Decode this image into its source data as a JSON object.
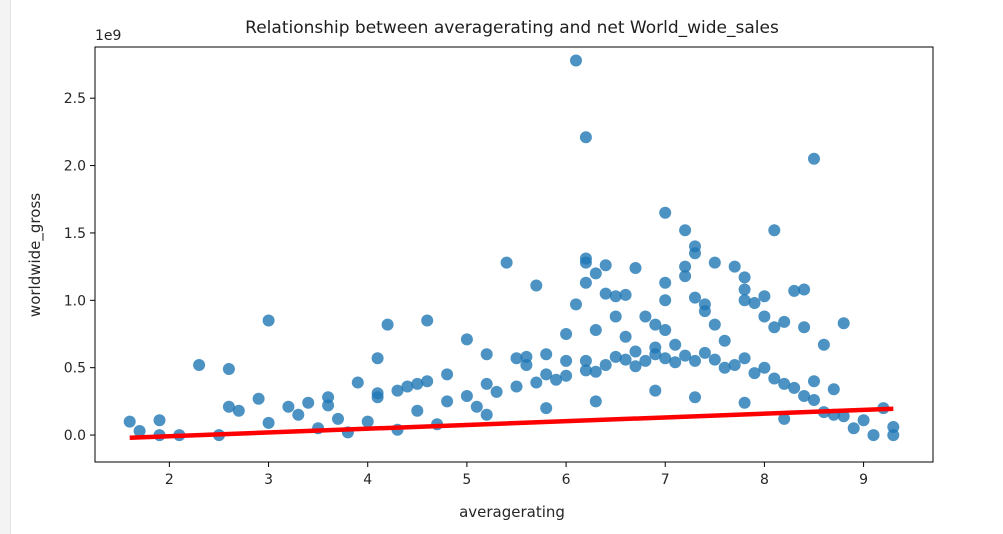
{
  "chart_data": {
    "type": "scatter",
    "title": "Relationship between averagerating and net World_wide_sales",
    "xlabel": "averagerating",
    "ylabel": "worldwide_gross",
    "y_offset_label": "1e9",
    "xlim": [
      1.25,
      9.7
    ],
    "ylim": [
      -0.2,
      2.88
    ],
    "x_ticks": [
      2,
      3,
      4,
      5,
      6,
      7,
      8,
      9
    ],
    "y_ticks": [
      0.0,
      0.5,
      1.0,
      1.5,
      2.0,
      2.5
    ],
    "y_tick_labels": [
      "0.0",
      "0.5",
      "1.0",
      "1.5",
      "2.0",
      "2.5"
    ],
    "grid": false,
    "marker_color": "#1f77b4",
    "marker_alpha": 0.8,
    "regression_color": "#ff0000",
    "regression_line": {
      "x": [
        1.6,
        9.3
      ],
      "y": [
        -0.02,
        0.195
      ]
    },
    "series": [
      {
        "points": [
          [
            1.6,
            0.1
          ],
          [
            1.7,
            0.03
          ],
          [
            1.9,
            0.11
          ],
          [
            1.9,
            0.0
          ],
          [
            2.1,
            0.0
          ],
          [
            2.3,
            0.52
          ],
          [
            2.6,
            0.49
          ],
          [
            2.6,
            0.21
          ],
          [
            2.7,
            0.18
          ],
          [
            2.9,
            0.27
          ],
          [
            3.0,
            0.85
          ],
          [
            3.0,
            0.09
          ],
          [
            3.2,
            0.21
          ],
          [
            3.3,
            0.15
          ],
          [
            3.4,
            0.24
          ],
          [
            3.6,
            0.28
          ],
          [
            3.6,
            0.22
          ],
          [
            3.7,
            0.12
          ],
          [
            3.9,
            0.39
          ],
          [
            4.1,
            0.57
          ],
          [
            4.1,
            0.31
          ],
          [
            4.1,
            0.28
          ],
          [
            4.2,
            0.82
          ],
          [
            4.3,
            0.33
          ],
          [
            4.4,
            0.36
          ],
          [
            4.5,
            0.38
          ],
          [
            4.6,
            0.85
          ],
          [
            4.6,
            0.4
          ],
          [
            4.8,
            0.45
          ],
          [
            4.8,
            0.25
          ],
          [
            5.0,
            0.71
          ],
          [
            5.0,
            0.29
          ],
          [
            5.2,
            0.6
          ],
          [
            5.2,
            0.38
          ],
          [
            5.4,
            1.28
          ],
          [
            5.5,
            0.57
          ],
          [
            5.6,
            0.58
          ],
          [
            5.6,
            0.52
          ],
          [
            5.7,
            1.11
          ],
          [
            5.8,
            0.6
          ],
          [
            5.8,
            0.45
          ],
          [
            6.0,
            0.75
          ],
          [
            6.0,
            0.55
          ],
          [
            6.1,
            2.78
          ],
          [
            6.1,
            0.97
          ],
          [
            6.2,
            2.21
          ],
          [
            6.2,
            1.31
          ],
          [
            6.2,
            1.28
          ],
          [
            6.2,
            1.13
          ],
          [
            6.2,
            0.55
          ],
          [
            6.3,
            1.2
          ],
          [
            6.3,
            0.78
          ],
          [
            6.4,
            1.26
          ],
          [
            6.4,
            1.05
          ],
          [
            6.5,
            1.03
          ],
          [
            6.5,
            0.88
          ],
          [
            6.6,
            1.04
          ],
          [
            6.6,
            0.73
          ],
          [
            6.7,
            1.24
          ],
          [
            6.7,
            0.62
          ],
          [
            6.8,
            0.88
          ],
          [
            6.9,
            0.82
          ],
          [
            6.9,
            0.65
          ],
          [
            7.0,
            1.65
          ],
          [
            7.0,
            1.13
          ],
          [
            7.0,
            1.0
          ],
          [
            7.0,
            0.78
          ],
          [
            7.1,
            0.67
          ],
          [
            7.2,
            1.52
          ],
          [
            7.2,
            1.25
          ],
          [
            7.2,
            1.18
          ],
          [
            7.3,
            1.4
          ],
          [
            7.3,
            1.35
          ],
          [
            7.3,
            1.02
          ],
          [
            7.4,
            0.97
          ],
          [
            7.4,
            0.92
          ],
          [
            7.5,
            1.28
          ],
          [
            7.5,
            0.82
          ],
          [
            7.6,
            0.7
          ],
          [
            7.7,
            1.25
          ],
          [
            7.8,
            1.17
          ],
          [
            7.8,
            1.08
          ],
          [
            7.8,
            1.0
          ],
          [
            7.9,
            0.98
          ],
          [
            8.0,
            1.03
          ],
          [
            8.0,
            0.88
          ],
          [
            8.1,
            1.52
          ],
          [
            8.1,
            0.8
          ],
          [
            8.2,
            0.84
          ],
          [
            8.3,
            1.07
          ],
          [
            8.4,
            1.08
          ],
          [
            8.4,
            0.8
          ],
          [
            8.5,
            2.05
          ],
          [
            8.5,
            0.4
          ],
          [
            8.6,
            0.67
          ],
          [
            8.7,
            0.34
          ],
          [
            8.8,
            0.83
          ],
          [
            8.8,
            0.14
          ],
          [
            9.0,
            0.11
          ],
          [
            9.2,
            0.2
          ],
          [
            9.3,
            0.06
          ],
          [
            9.3,
            0.0
          ],
          [
            9.1,
            0.0
          ],
          [
            2.5,
            0.0
          ],
          [
            3.5,
            0.05
          ],
          [
            4.0,
            0.1
          ],
          [
            4.5,
            0.18
          ],
          [
            5.1,
            0.21
          ],
          [
            5.3,
            0.32
          ],
          [
            5.5,
            0.36
          ],
          [
            5.7,
            0.39
          ],
          [
            5.9,
            0.41
          ],
          [
            6.0,
            0.44
          ],
          [
            6.2,
            0.48
          ],
          [
            6.3,
            0.47
          ],
          [
            6.4,
            0.52
          ],
          [
            6.5,
            0.58
          ],
          [
            6.6,
            0.56
          ],
          [
            6.7,
            0.51
          ],
          [
            6.8,
            0.55
          ],
          [
            6.9,
            0.6
          ],
          [
            7.0,
            0.57
          ],
          [
            7.1,
            0.54
          ],
          [
            7.2,
            0.59
          ],
          [
            7.3,
            0.55
          ],
          [
            7.4,
            0.61
          ],
          [
            7.5,
            0.56
          ],
          [
            7.6,
            0.5
          ],
          [
            7.7,
            0.52
          ],
          [
            7.8,
            0.57
          ],
          [
            7.9,
            0.46
          ],
          [
            8.0,
            0.5
          ],
          [
            8.1,
            0.42
          ],
          [
            8.2,
            0.38
          ],
          [
            8.3,
            0.35
          ],
          [
            8.4,
            0.29
          ],
          [
            8.5,
            0.26
          ],
          [
            8.6,
            0.17
          ],
          [
            8.7,
            0.15
          ],
          [
            8.9,
            0.05
          ],
          [
            4.3,
            0.04
          ],
          [
            4.7,
            0.08
          ],
          [
            5.2,
            0.15
          ],
          [
            5.8,
            0.2
          ],
          [
            6.3,
            0.25
          ],
          [
            6.9,
            0.33
          ],
          [
            7.3,
            0.28
          ],
          [
            7.8,
            0.24
          ],
          [
            8.2,
            0.12
          ],
          [
            3.8,
            0.02
          ]
        ]
      }
    ]
  }
}
